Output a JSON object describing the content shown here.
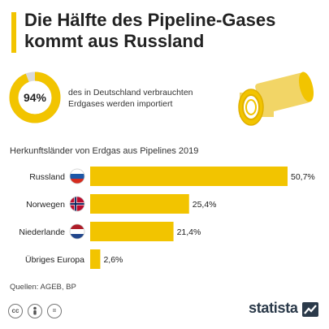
{
  "title": "Die Hälfte des Pipeline-Gases kommt aus Russland",
  "kpi": {
    "value_label": "94%",
    "value": 94,
    "text": "des in Deutschland verbrauchten Erdgases werden importiert"
  },
  "chart_data": {
    "type": "bar",
    "orientation": "horizontal",
    "title": "Herkunftsländer von Erdgas aus Pipelines 2019",
    "categories": [
      "Russland",
      "Norwegen",
      "Niederlande",
      "Übriges Europa"
    ],
    "values": [
      50.7,
      25.4,
      21.4,
      2.6
    ],
    "value_labels": [
      "50,7%",
      "25,4%",
      "21,4%",
      "2,6%"
    ],
    "flags": [
      "russia-flag-icon",
      "norway-flag-icon",
      "netherlands-flag-icon",
      ""
    ],
    "xlim": [
      0,
      50.7
    ],
    "grid": false,
    "legend": "none",
    "bar_color": "#f2c400"
  },
  "source": "Quellen: AGEB, BP",
  "footer": {
    "icons": [
      "cc-icon",
      "person-icon",
      "equals-icon"
    ],
    "brand": "statista"
  },
  "colors": {
    "accent": "#f2c400",
    "track": "#d9d9d9",
    "text": "#222222"
  }
}
